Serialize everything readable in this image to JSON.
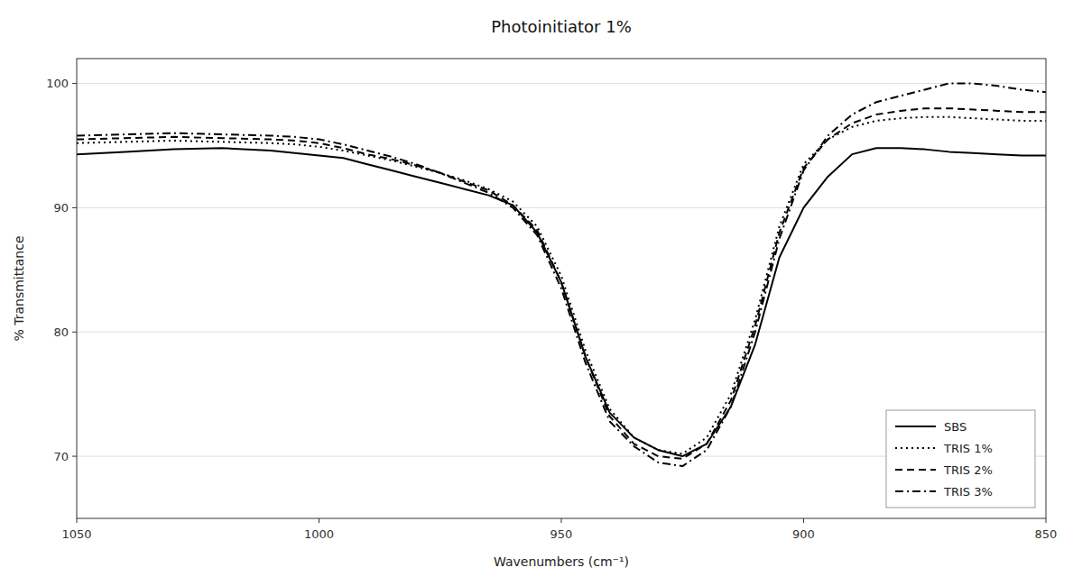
{
  "chart_data": {
    "type": "line",
    "title": "Photoinitiator 1%",
    "xlabel": "Wavenumbers (cm⁻¹)",
    "ylabel": "% Transmittance",
    "xlim": [
      1050,
      850
    ],
    "ylim": [
      65,
      102
    ],
    "xticks": [
      1050,
      1000,
      950,
      900,
      850
    ],
    "yticks": [
      70,
      80,
      90,
      100
    ],
    "grid": true,
    "legend": "lower right",
    "x": [
      1050,
      1040,
      1030,
      1020,
      1010,
      1005,
      1000,
      995,
      990,
      985,
      980,
      975,
      970,
      965,
      960,
      955,
      950,
      945,
      940,
      935,
      930,
      925,
      920,
      915,
      910,
      905,
      900,
      895,
      890,
      885,
      880,
      875,
      870,
      865,
      860,
      855,
      850
    ],
    "series": [
      {
        "name": "SBS",
        "color": "#000000",
        "line_style": "solid",
        "values": [
          94.3,
          94.5,
          94.7,
          94.8,
          94.6,
          94.4,
          94.2,
          94.0,
          93.5,
          93.0,
          92.5,
          92.0,
          91.5,
          91.0,
          90.2,
          88.0,
          84.0,
          78.0,
          73.5,
          71.5,
          70.5,
          70.0,
          71.0,
          74.0,
          79.0,
          86.0,
          90.0,
          92.5,
          94.3,
          94.8,
          94.8,
          94.7,
          94.5,
          94.4,
          94.3,
          94.2,
          94.2
        ]
      },
      {
        "name": "TRIS 1%",
        "color": "#000000",
        "line_style": "dotted",
        "values": [
          95.2,
          95.3,
          95.4,
          95.3,
          95.2,
          95.1,
          94.9,
          94.6,
          94.2,
          93.8,
          93.3,
          92.8,
          92.2,
          91.5,
          90.5,
          88.5,
          84.5,
          78.5,
          73.8,
          71.5,
          70.5,
          70.2,
          71.5,
          75.0,
          81.0,
          88.5,
          93.5,
          95.5,
          96.5,
          97.0,
          97.2,
          97.3,
          97.3,
          97.2,
          97.1,
          97.0,
          97.0
        ]
      },
      {
        "name": "TRIS 2%",
        "color": "#000000",
        "line_style": "dashed",
        "values": [
          95.5,
          95.6,
          95.7,
          95.6,
          95.5,
          95.4,
          95.2,
          94.8,
          94.3,
          93.9,
          93.4,
          92.8,
          92.1,
          91.4,
          90.2,
          88.2,
          84.0,
          78.0,
          73.2,
          71.0,
          70.0,
          69.8,
          71.0,
          74.5,
          80.5,
          88.0,
          93.2,
          95.5,
          96.8,
          97.5,
          97.8,
          98.0,
          98.0,
          97.9,
          97.8,
          97.7,
          97.7
        ]
      },
      {
        "name": "TRIS 3%",
        "color": "#000000",
        "line_style": "dashdot",
        "values": [
          95.8,
          95.9,
          96.0,
          95.9,
          95.8,
          95.7,
          95.5,
          95.1,
          94.6,
          94.1,
          93.5,
          92.8,
          92.0,
          91.2,
          90.0,
          87.8,
          83.5,
          77.5,
          72.8,
          70.8,
          69.5,
          69.2,
          70.5,
          74.0,
          80.0,
          87.5,
          93.0,
          95.8,
          97.5,
          98.5,
          99.0,
          99.5,
          100.0,
          100.0,
          99.8,
          99.5,
          99.3
        ]
      }
    ]
  }
}
